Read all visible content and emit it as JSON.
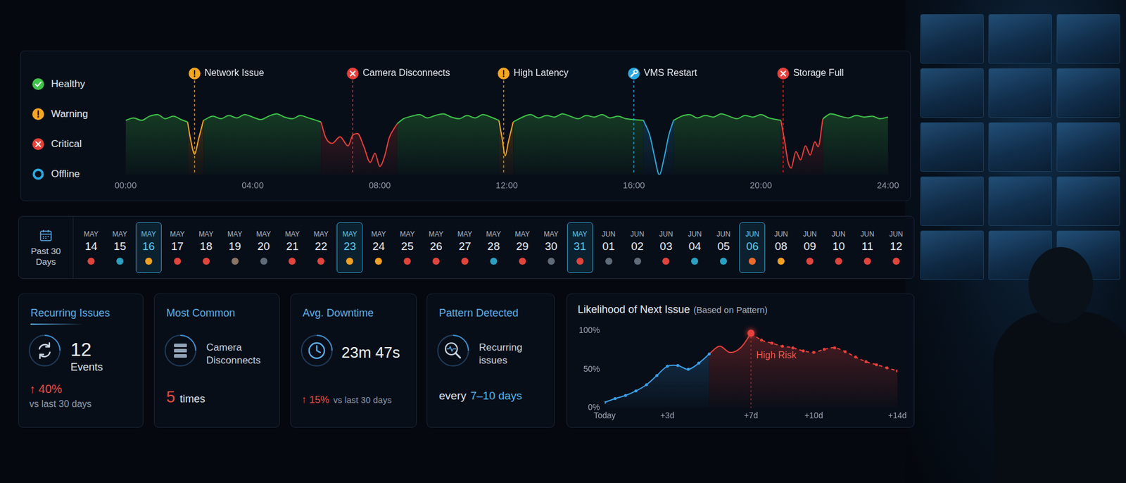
{
  "chart_data": [
    {
      "type": "line",
      "xlim": [
        0,
        24
      ],
      "xticks": [
        {
          "value": 0,
          "label": "00:00"
        },
        {
          "value": 4,
          "label": "04:00"
        },
        {
          "value": 8,
          "label": "08:00"
        },
        {
          "value": 12,
          "label": "12:00"
        },
        {
          "value": 16,
          "label": "16:00"
        },
        {
          "value": 20,
          "label": "20:00"
        },
        {
          "value": 24,
          "label": "24:00"
        }
      ],
      "ylim": [
        0,
        100
      ],
      "tick_labels": "x",
      "grid": false,
      "legend": "left",
      "series": [
        {
          "name": "Healthy",
          "color": "#3fc34a",
          "x": [
            0,
            0.25,
            0.5,
            0.75,
            1,
            1.25,
            1.5,
            1.75,
            1.95,
            2.17,
            2.45,
            2.75,
            3,
            3.25,
            3.5,
            3.75,
            4,
            4.25,
            4.5,
            4.75,
            5,
            5.25,
            5.5,
            5.75,
            6,
            6.15,
            7.2,
            8.55,
            8.75,
            9,
            9.25,
            9.5,
            9.75,
            10,
            10.25,
            10.5,
            10.75,
            11,
            11.25,
            11.5,
            11.75,
            11.95,
            12.2,
            12.5,
            12.75,
            13,
            13.25,
            13.5,
            13.75,
            14,
            14.25,
            14.5,
            14.75,
            15,
            15.25,
            15.5,
            15.75,
            16,
            16.3,
            16.8,
            17.25,
            17.5,
            17.75,
            18,
            18.25,
            18.5,
            18.75,
            19,
            19.25,
            19.5,
            19.75,
            20,
            20.25,
            20.5,
            20.63,
            21.3,
            21.95,
            22.2,
            22.5,
            22.75,
            23,
            23.25,
            23.5,
            23.75,
            24
          ],
          "values": [
            66,
            69,
            66,
            71,
            73,
            68,
            71,
            67,
            64,
            null,
            66,
            71,
            68,
            72,
            69,
            73,
            70,
            67,
            71,
            74,
            70,
            68,
            72,
            69,
            66,
            64,
            null,
            62,
            68,
            71,
            73,
            69,
            72,
            74,
            70,
            68,
            72,
            69,
            73,
            70,
            66,
            null,
            64,
            70,
            73,
            69,
            72,
            70,
            74,
            71,
            68,
            72,
            70,
            73,
            69,
            71,
            68,
            67,
            66,
            null,
            66,
            71,
            73,
            69,
            72,
            70,
            74,
            71,
            68,
            72,
            70,
            73,
            69,
            67,
            66,
            null,
            68,
            74,
            71,
            69,
            72,
            70,
            71,
            68,
            70
          ]
        },
        {
          "name": "Warning",
          "color": "#f5a623",
          "x": [
            1.95,
            2.05,
            2.17,
            2.3,
            2.45,
            7,
            11.75,
            11.85,
            11.95,
            12.05,
            12.2
          ],
          "values": [
            64,
            42,
            25,
            44,
            66,
            null,
            66,
            45,
            23,
            40,
            64
          ]
        },
        {
          "name": "Critical",
          "color": "#e8403a",
          "x": [
            6.15,
            6.3,
            6.5,
            6.75,
            7,
            7.15,
            7.3,
            7.5,
            7.7,
            7.85,
            8,
            8.15,
            8.3,
            8.45,
            8.55,
            14,
            20.63,
            20.75,
            20.85,
            20.95,
            21.1,
            21.25,
            21.4,
            21.55,
            21.7,
            21.8,
            21.95
          ],
          "values": [
            64,
            45,
            38,
            46,
            35,
            48,
            50,
            34,
            15,
            26,
            10,
            22,
            45,
            56,
            62,
            null,
            66,
            40,
            16,
            8,
            28,
            18,
            35,
            24,
            40,
            34,
            68
          ]
        },
        {
          "name": "Offline",
          "color": "#29a9e0",
          "x": [
            16.3,
            16.5,
            16.65,
            16.8,
            16.95,
            17.1,
            17.25
          ],
          "values": [
            66,
            48,
            22,
            0,
            20,
            48,
            66
          ]
        }
      ],
      "annotations": [
        {
          "x": 2.17,
          "label": "Network Issue",
          "color": "#f5a623",
          "marker": "exclamation"
        },
        {
          "x": 7.15,
          "label": "Camera Disconnects",
          "color": "#e8403a",
          "marker": "cross"
        },
        {
          "x": 11.9,
          "label": "High Latency",
          "color": "#f5a623",
          "marker": "exclamation"
        },
        {
          "x": 16.0,
          "label": "VMS Restart",
          "color": "#29a9e0",
          "marker": "wrench"
        },
        {
          "x": 20.7,
          "label": "Storage Full",
          "color": "#e8403a",
          "marker": "cross"
        }
      ]
    },
    {
      "type": "line",
      "title": "Likelihood of Next Issue",
      "subtitle": "(Based on Pattern)",
      "x": [
        0,
        0.5,
        1,
        1.5,
        2,
        2.5,
        3,
        3.5,
        4,
        4.5,
        5,
        5.5,
        6,
        6.5,
        7,
        7.5,
        8,
        8.5,
        9,
        9.5,
        10,
        10.5,
        11,
        11.5,
        12,
        12.5,
        13,
        13.5,
        14
      ],
      "xlim": [
        0,
        14
      ],
      "xticks": [
        {
          "value": 0,
          "label": "Today"
        },
        {
          "value": 3,
          "label": "+3d"
        },
        {
          "value": 7,
          "label": "+7d"
        },
        {
          "value": 10,
          "label": "+10d"
        },
        {
          "value": 14,
          "label": "+14d"
        }
      ],
      "ylim": [
        0,
        100
      ],
      "yticks": [
        {
          "value": 0,
          "label": "0%"
        },
        {
          "value": 50,
          "label": "50%"
        },
        {
          "value": 100,
          "label": "100%"
        }
      ],
      "grid": false,
      "series": [
        {
          "color": "#3aa0e8",
          "marker": "circle",
          "line_style": "solid",
          "values": [
            7,
            12,
            16,
            22,
            30,
            42,
            54,
            55,
            50,
            58,
            70,
            null,
            null,
            null,
            null,
            null,
            null,
            null,
            null,
            null,
            null,
            null,
            null,
            null,
            null,
            null,
            null,
            null,
            null
          ]
        },
        {
          "color": "#e8403a",
          "marker": "none",
          "line_style": "solid",
          "values": [
            null,
            null,
            null,
            null,
            null,
            null,
            null,
            null,
            null,
            null,
            70,
            80,
            72,
            78,
            97,
            null,
            null,
            null,
            null,
            null,
            null,
            null,
            null,
            null,
            null,
            null,
            null,
            null,
            null
          ]
        },
        {
          "color": "#e8403a",
          "marker": "circle",
          "line_style": "dashed",
          "values": [
            null,
            null,
            null,
            null,
            null,
            null,
            null,
            null,
            null,
            null,
            null,
            null,
            null,
            null,
            97,
            88,
            84,
            80,
            78,
            74,
            72,
            76,
            78,
            73,
            66,
            60,
            56,
            52,
            48
          ]
        }
      ],
      "annotations": [
        {
          "x": 7,
          "y": 97,
          "label": "High Risk",
          "color": "#e8403a"
        }
      ]
    }
  ],
  "calendar": {
    "label": "Past 30 Days",
    "days": [
      {
        "month": "MAY",
        "day": "14",
        "color": "#e0443c"
      },
      {
        "month": "MAY",
        "day": "15",
        "color": "#2a9fc0"
      },
      {
        "month": "MAY",
        "day": "16",
        "color": "#f0a020",
        "selected": true
      },
      {
        "month": "MAY",
        "day": "17",
        "color": "#e0443c"
      },
      {
        "month": "MAY",
        "day": "18",
        "color": "#e0443c"
      },
      {
        "month": "MAY",
        "day": "19",
        "color": "#8a7565"
      },
      {
        "month": "MAY",
        "day": "20",
        "color": "#5f6b78"
      },
      {
        "month": "MAY",
        "day": "21",
        "color": "#e0443c"
      },
      {
        "month": "MAY",
        "day": "22",
        "color": "#e0443c"
      },
      {
        "month": "MAY",
        "day": "23",
        "color": "#f0a020",
        "selected": true
      },
      {
        "month": "MAY",
        "day": "24",
        "color": "#f0a020"
      },
      {
        "month": "MAY",
        "day": "25",
        "color": "#e0443c"
      },
      {
        "month": "MAY",
        "day": "26",
        "color": "#e0443c"
      },
      {
        "month": "MAY",
        "day": "27",
        "color": "#e0443c"
      },
      {
        "month": "MAY",
        "day": "28",
        "color": "#2a9fc0"
      },
      {
        "month": "MAY",
        "day": "29",
        "color": "#e0443c"
      },
      {
        "month": "MAY",
        "day": "30",
        "color": "#5f6b78"
      },
      {
        "month": "MAY",
        "day": "31",
        "color": "#e0443c",
        "selected": true
      },
      {
        "month": "JUN",
        "day": "01",
        "color": "#5f6b78"
      },
      {
        "month": "JUN",
        "day": "02",
        "color": "#5f6b78"
      },
      {
        "month": "JUN",
        "day": "03",
        "color": "#e0443c"
      },
      {
        "month": "JUN",
        "day": "04",
        "color": "#2a9fc0"
      },
      {
        "month": "JUN",
        "day": "05",
        "color": "#2a9fc0"
      },
      {
        "month": "JUN",
        "day": "06",
        "color": "#ec6a2c",
        "selected": true
      },
      {
        "month": "JUN",
        "day": "08",
        "color": "#f0a020"
      },
      {
        "month": "JUN",
        "day": "09",
        "color": "#e0443c"
      },
      {
        "month": "JUN",
        "day": "10",
        "color": "#e0443c"
      },
      {
        "month": "JUN",
        "day": "11",
        "color": "#e0443c"
      },
      {
        "month": "JUN",
        "day": "12",
        "color": "#e0443c"
      }
    ]
  },
  "cards": [
    {
      "title": "Recurring Issues",
      "value": 12,
      "unit": "Events",
      "change": "↑ 40%",
      "note": "vs last 30 days"
    },
    {
      "title": "Most Common",
      "text": "Camera Disconnects",
      "value": 5,
      "unit": "times"
    },
    {
      "title": "Avg. Downtime",
      "value": "23m 47s",
      "change": "↑ 15%",
      "note": "vs last 30 days"
    },
    {
      "title": "Pattern Detected",
      "text": "Recurring issues",
      "prefix": "every",
      "value": "7–10 days"
    }
  ]
}
